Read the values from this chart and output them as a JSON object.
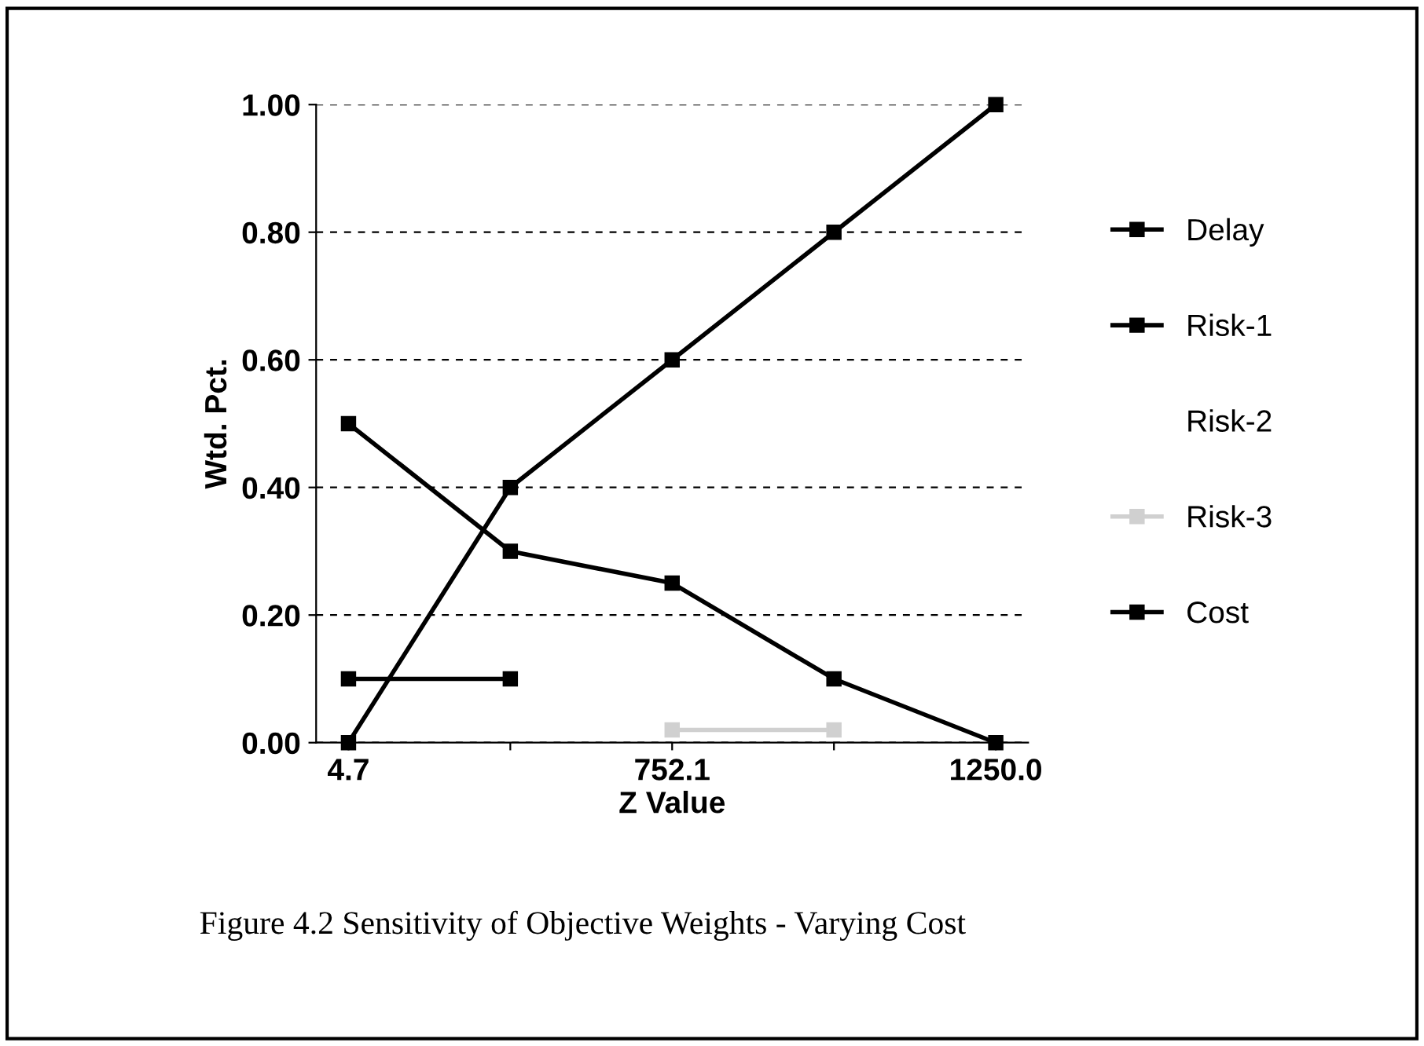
{
  "chart_data": {
    "type": "line",
    "xlabel": "Z Value",
    "ylabel": "Wtd. Pct.",
    "categories": [
      "4.7",
      null,
      "752.1",
      null,
      "1250.0"
    ],
    "series": [
      {
        "name": "Delay",
        "color": "#000000",
        "values": [
          0.5,
          0.3,
          0.25,
          0.1,
          0.0
        ]
      },
      {
        "name": "Risk-1",
        "color": "#000000",
        "values": [
          0.1,
          0.1,
          null,
          null,
          null
        ]
      },
      {
        "name": "Risk-2",
        "values": [
          null,
          null,
          null,
          null,
          null
        ]
      },
      {
        "name": "Risk-3",
        "color": "#d0d0d0",
        "values": [
          null,
          null,
          0.02,
          0.02,
          null
        ]
      },
      {
        "name": "Cost",
        "color": "#000000",
        "values": [
          0.0,
          0.4,
          0.6,
          0.8,
          1.0
        ]
      }
    ],
    "ylim": [
      0,
      1
    ],
    "yticks": [
      {
        "value": 0,
        "label": "0.00"
      },
      {
        "value": 0.2,
        "label": "0.20"
      },
      {
        "value": 0.4,
        "label": "0.40"
      },
      {
        "value": 0.6,
        "label": "0.60"
      },
      {
        "value": 0.8,
        "label": "0.80"
      },
      {
        "value": 1.0,
        "label": "1.00"
      }
    ],
    "grid": "y",
    "legend": "right",
    "marker": "square",
    "line_style": "solid",
    "annotations": [
      "Figure 4.2 Sensitivity of Objective Weights - Varying Cost"
    ]
  }
}
